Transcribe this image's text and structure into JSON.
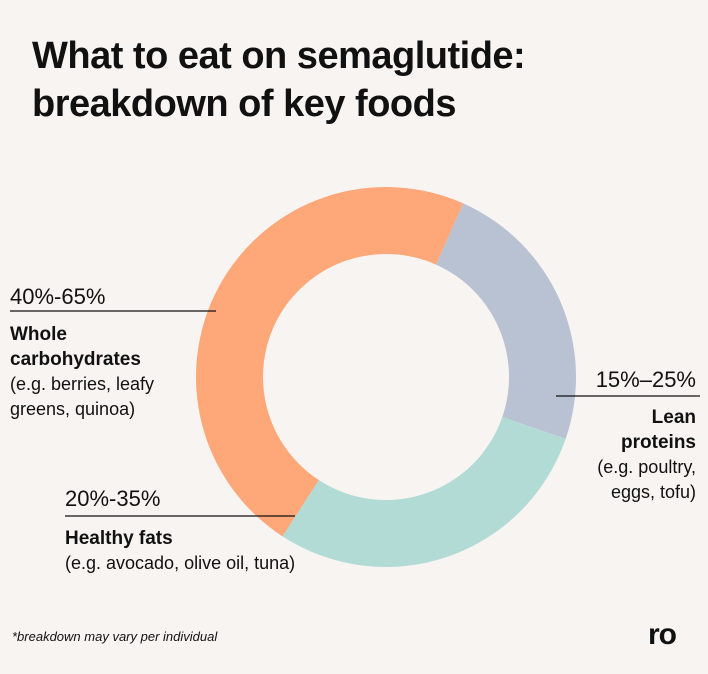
{
  "chart_data": {
    "type": "donut",
    "title_lines": [
      "What to eat on semaglutide:",
      "breakdown of key foods"
    ],
    "series": [
      {
        "range_label": "40%-65%",
        "low": 40,
        "high": 65,
        "name_lines": [
          "Whole",
          "carbohydrates"
        ],
        "example_lines": [
          "(e.g. berries, leafy",
          "greens, quinoa)"
        ],
        "color": "#fea778",
        "slice_deg": 171
      },
      {
        "range_label": "15%–25%",
        "low": 15,
        "high": 25,
        "name_lines": [
          "Lean",
          "proteins"
        ],
        "example_lines": [
          "(e.g. poultry,",
          "eggs, tofu)"
        ],
        "color": "#b9c2d3",
        "slice_deg": 85
      },
      {
        "range_label": "20%-35%",
        "low": 20,
        "high": 35,
        "name_lines": [
          "Healthy fats"
        ],
        "example_lines": [
          "(e.g. avocado, olive oil, tuna)"
        ],
        "color": "#b2dbd6",
        "slice_deg": 104
      }
    ],
    "footnote": "*breakdown may vary per individual"
  },
  "brand": {
    "logo_text": "ro"
  },
  "colors": {
    "background": "#f7f4f1",
    "text": "#111111",
    "leader_line": "#111111"
  }
}
